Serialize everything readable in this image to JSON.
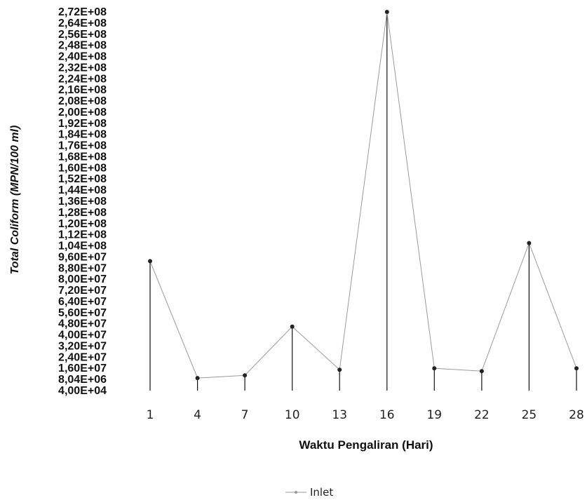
{
  "chart_data": {
    "type": "line",
    "title": "",
    "xlabel": "Waktu Pengaliran (Hari)",
    "ylabel": "Total Coliform (MPN/100 ml)",
    "categories": [
      "1",
      "4",
      "7",
      "10",
      "13",
      "16",
      "19",
      "22",
      "25",
      "28"
    ],
    "series": [
      {
        "name": "Inlet",
        "values": [
          93000000,
          9000000,
          11000000,
          46000000,
          15000000,
          272000000,
          16000000,
          14000000,
          106000000,
          16000000
        ],
        "color": "#9a9a9a",
        "marker_color": "#222222"
      }
    ],
    "y_tick_labels": [
      "4,00E+04",
      "8,04E+06",
      "1,60E+07",
      "2,40E+07",
      "3,20E+07",
      "4,00E+07",
      "4,80E+07",
      "5,60E+07",
      "6,40E+07",
      "7,20E+07",
      "8,00E+07",
      "8,80E+07",
      "9,60E+07",
      "1,04E+08",
      "1,12E+08",
      "1,20E+08",
      "1,28E+08",
      "1,36E+08",
      "1,44E+08",
      "1,52E+08",
      "1,60E+08",
      "1,68E+08",
      "1,76E+08",
      "1,84E+08",
      "1,92E+08",
      "2,00E+08",
      "2,08E+08",
      "2,16E+08",
      "2,24E+08",
      "2,32E+08",
      "2,40E+08",
      "2,48E+08",
      "2,56E+08",
      "2,64E+08",
      "2,72E+08"
    ],
    "ylim": [
      0,
      272000000
    ],
    "grid": false,
    "legend": "bottom-center"
  }
}
